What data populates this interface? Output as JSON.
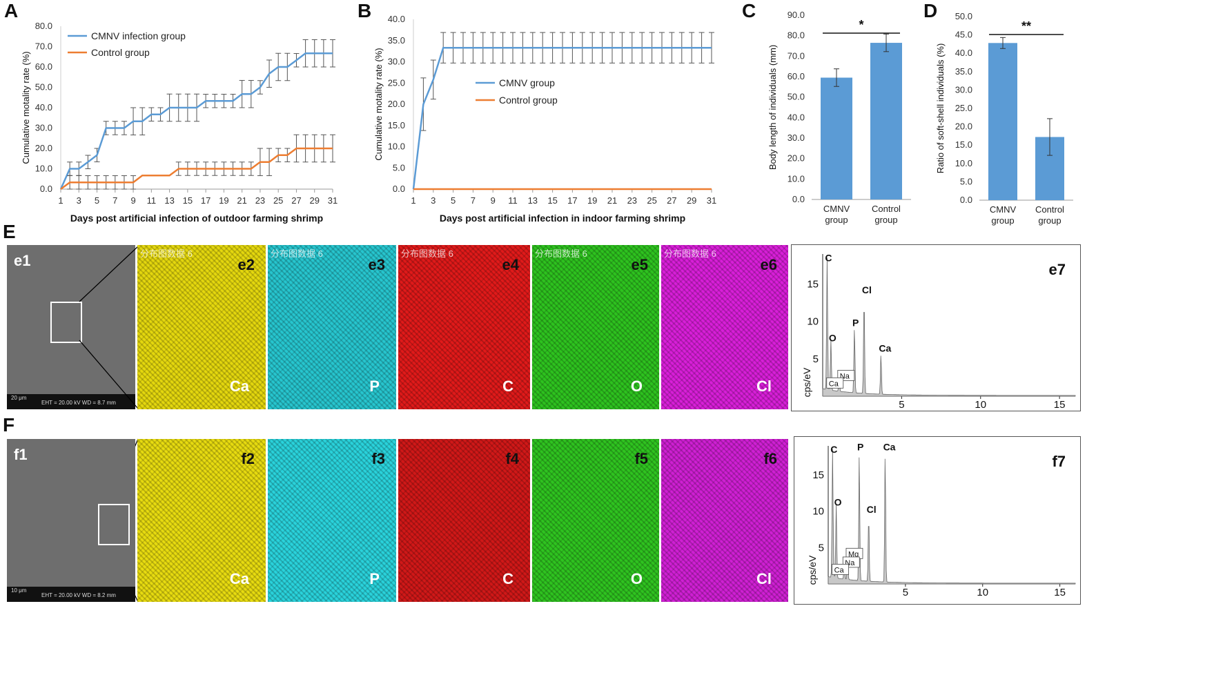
{
  "panels": {
    "A": "A",
    "B": "B",
    "C": "C",
    "D": "D",
    "E": "E",
    "F": "F"
  },
  "chart_data": [
    {
      "id": "A",
      "type": "line",
      "title": "",
      "xlabel": "Days post artificial infection of outdoor farming shrimp",
      "ylabel": "Cumulative motality rate (%)",
      "xlim": [
        1,
        31
      ],
      "ylim": [
        0,
        80
      ],
      "yticks": [
        "0.0",
        "10.0",
        "20.0",
        "30.0",
        "40.0",
        "50.0",
        "60.0",
        "70.0",
        "80.0"
      ],
      "xticks": [
        "1",
        "3",
        "5",
        "7",
        "9",
        "11",
        "13",
        "15",
        "17",
        "19",
        "21",
        "23",
        "25",
        "27",
        "29",
        "31"
      ],
      "legend_position": "top-left",
      "x": [
        1,
        2,
        3,
        4,
        5,
        6,
        7,
        8,
        9,
        10,
        11,
        12,
        13,
        14,
        15,
        16,
        17,
        18,
        19,
        20,
        21,
        22,
        23,
        24,
        25,
        26,
        27,
        28,
        29,
        30,
        31
      ],
      "series": [
        {
          "name": "CMNV infection group",
          "color": "#5b9bd5",
          "values": [
            0,
            10,
            10,
            13.3,
            16.7,
            30,
            30,
            30,
            33.3,
            33.3,
            36.7,
            36.7,
            40,
            40,
            40,
            40,
            43.3,
            43.3,
            43.3,
            43.3,
            46.7,
            46.7,
            50,
            56.7,
            60,
            60,
            63.3,
            66.7,
            66.7,
            66.7,
            66.7
          ],
          "errors": [
            0,
            3.3,
            3.3,
            3.3,
            3.3,
            3.3,
            3.3,
            3.3,
            6.7,
            6.7,
            3.3,
            3.3,
            6.7,
            6.7,
            6.7,
            6.7,
            3.3,
            3.3,
            3.3,
            3.3,
            6.7,
            6.7,
            3.3,
            6.7,
            6.7,
            6.7,
            3.3,
            6.7,
            6.7,
            6.7,
            6.7
          ]
        },
        {
          "name": "Control group",
          "color": "#ed7d31",
          "values": [
            0,
            3.3,
            3.3,
            3.3,
            3.3,
            3.3,
            3.3,
            3.3,
            3.3,
            6.7,
            6.7,
            6.7,
            6.7,
            10,
            10,
            10,
            10,
            10,
            10,
            10,
            10,
            10,
            13.3,
            13.3,
            16.7,
            16.7,
            20,
            20,
            20,
            20,
            20
          ],
          "errors": [
            0,
            3.3,
            3.3,
            3.3,
            3.3,
            3.3,
            3.3,
            3.3,
            3.3,
            0,
            0,
            0,
            0,
            3.3,
            3.3,
            3.3,
            3.3,
            3.3,
            3.3,
            3.3,
            3.3,
            3.3,
            6.7,
            6.7,
            3.3,
            3.3,
            6.7,
            6.7,
            6.7,
            6.7,
            6.7
          ]
        }
      ]
    },
    {
      "id": "B",
      "type": "line",
      "title": "",
      "xlabel": "Days post artificial infection in indoor farming shrimp",
      "ylabel": "Cumulative motality rate (%)",
      "xlim": [
        1,
        31
      ],
      "ylim": [
        0,
        40
      ],
      "yticks": [
        "0.0",
        "5.0",
        "10.0",
        "15.0",
        "20.0",
        "25.0",
        "30.0",
        "35.0",
        "40.0"
      ],
      "xticks": [
        "1",
        "3",
        "5",
        "7",
        "9",
        "11",
        "13",
        "15",
        "17",
        "19",
        "21",
        "23",
        "25",
        "27",
        "29",
        "31"
      ],
      "legend_position": "center",
      "x": [
        1,
        2,
        3,
        4,
        5,
        6,
        7,
        8,
        9,
        10,
        11,
        12,
        13,
        14,
        15,
        16,
        17,
        18,
        19,
        20,
        21,
        22,
        23,
        24,
        25,
        26,
        27,
        28,
        29,
        30,
        31
      ],
      "series": [
        {
          "name": "CMNV group",
          "color": "#5b9bd5",
          "values": [
            0,
            20,
            25.8,
            33.3,
            33.3,
            33.3,
            33.3,
            33.3,
            33.3,
            33.3,
            33.3,
            33.3,
            33.3,
            33.3,
            33.3,
            33.3,
            33.3,
            33.3,
            33.3,
            33.3,
            33.3,
            33.3,
            33.3,
            33.3,
            33.3,
            33.3,
            33.3,
            33.3,
            33.3,
            33.3,
            33.3
          ],
          "errors": [
            0,
            6.2,
            4.6,
            3.6,
            3.6,
            3.6,
            3.6,
            3.6,
            3.6,
            3.6,
            3.6,
            3.6,
            3.6,
            3.6,
            3.6,
            3.6,
            3.6,
            3.6,
            3.6,
            3.6,
            3.6,
            3.6,
            3.6,
            3.6,
            3.6,
            3.6,
            3.6,
            3.6,
            3.6,
            3.6,
            3.6
          ]
        },
        {
          "name": "Control group",
          "color": "#ed7d31",
          "values": [
            0,
            0,
            0,
            0,
            0,
            0,
            0,
            0,
            0,
            0,
            0,
            0,
            0,
            0,
            0,
            0,
            0,
            0,
            0,
            0,
            0,
            0,
            0,
            0,
            0,
            0,
            0,
            0,
            0,
            0,
            0
          ],
          "errors": []
        }
      ]
    },
    {
      "id": "C",
      "type": "bar",
      "ylabel": "Body length of individuals (mm)",
      "ylim": [
        0,
        90
      ],
      "yticks": [
        "0.0",
        "10.0",
        "20.0",
        "30.0",
        "40.0",
        "50.0",
        "60.0",
        "70.0",
        "80.0",
        "90.0"
      ],
      "categories": [
        [
          "CMNV",
          "group"
        ],
        [
          "Control",
          "group"
        ]
      ],
      "values": [
        59.5,
        76.5
      ],
      "errors": [
        4.3,
        4.3
      ],
      "significance": "*",
      "color": "#5b9bd5"
    },
    {
      "id": "D",
      "type": "bar",
      "ylabel": "Ratio of soft-shell individuals (%)",
      "ylim": [
        0,
        50
      ],
      "yticks": [
        "0.0",
        "5.0",
        "10.0",
        "15.0",
        "20.0",
        "25.0",
        "30.0",
        "35.0",
        "40.0",
        "45.0",
        "50.0"
      ],
      "categories": [
        [
          "CMNV",
          "group"
        ],
        [
          "Control",
          "group"
        ]
      ],
      "values": [
        42.8,
        17.2
      ],
      "errors": [
        1.5,
        5
      ],
      "significance": "**",
      "color": "#5b9bd5"
    },
    {
      "id": "e7",
      "type": "area",
      "label": "e7",
      "ylabel": "cps/eV",
      "xlim": [
        0,
        16
      ],
      "ylim": [
        0,
        19
      ],
      "xticks": [
        "5",
        "10",
        "15"
      ],
      "yticks": [
        "5",
        "10",
        "15"
      ],
      "peaks": [
        {
          "label": "C",
          "x": 0.28,
          "y": 17.5
        },
        {
          "label": "O",
          "x": 0.52,
          "y": 6.8
        },
        {
          "label": "Na",
          "x": 1.04,
          "y": 1.8,
          "boxed": true
        },
        {
          "label": "Ca",
          "x": 0.34,
          "y": 0.8,
          "boxed": true
        },
        {
          "label": "P",
          "x": 2.01,
          "y": 8.8
        },
        {
          "label": "Cl",
          "x": 2.62,
          "y": 13.2
        },
        {
          "label": "Ca",
          "x": 3.69,
          "y": 5.4
        }
      ]
    },
    {
      "id": "f7",
      "type": "area",
      "label": "f7",
      "ylabel": "cps/eV",
      "xlim": [
        0,
        16
      ],
      "ylim": [
        0,
        19
      ],
      "xticks": [
        "5",
        "10",
        "15"
      ],
      "yticks": [
        "5",
        "10",
        "15"
      ],
      "peaks": [
        {
          "label": "C",
          "x": 0.28,
          "y": 17.5
        },
        {
          "label": "O",
          "x": 0.52,
          "y": 10.2
        },
        {
          "label": "Mg",
          "x": 1.25,
          "y": 3.2,
          "boxed": true
        },
        {
          "label": "Na",
          "x": 1.04,
          "y": 2.0,
          "boxed": true
        },
        {
          "label": "Ca",
          "x": 0.34,
          "y": 1.0,
          "boxed": true
        },
        {
          "label": "P",
          "x": 2.01,
          "y": 17.8
        },
        {
          "label": "Cl",
          "x": 2.62,
          "y": 9.2
        },
        {
          "label": "Ca",
          "x": 3.69,
          "y": 17.8
        }
      ]
    }
  ],
  "row_e": {
    "sem_label": "e1",
    "sem_scale": "20 μm",
    "sem_info": "EHT = 20.00 kV    WD = 8.7 mm",
    "watermark": "分布图数据 6",
    "maps": [
      {
        "tag": "e2",
        "element": "Ca",
        "color": "#e5d80e"
      },
      {
        "tag": "e3",
        "element": "P",
        "color": "#27c6cf"
      },
      {
        "tag": "e4",
        "element": "C",
        "color": "#e11a1a"
      },
      {
        "tag": "e5",
        "element": "O",
        "color": "#2ec31f"
      },
      {
        "tag": "e6",
        "element": "Cl",
        "color": "#d91fd9"
      }
    ]
  },
  "row_f": {
    "sem_label": "f1",
    "sem_scale": "10 μm",
    "sem_info": "EHT = 20.00 kV    WD = 8.2 mm",
    "maps": [
      {
        "tag": "f2",
        "element": "Ca",
        "color": "#e8dc10"
      },
      {
        "tag": "f3",
        "element": "P",
        "color": "#2ad3dc"
      },
      {
        "tag": "f4",
        "element": "C",
        "color": "#d11818"
      },
      {
        "tag": "f5",
        "element": "O",
        "color": "#2fc420"
      },
      {
        "tag": "f6",
        "element": "Cl",
        "color": "#d020d4"
      }
    ]
  }
}
